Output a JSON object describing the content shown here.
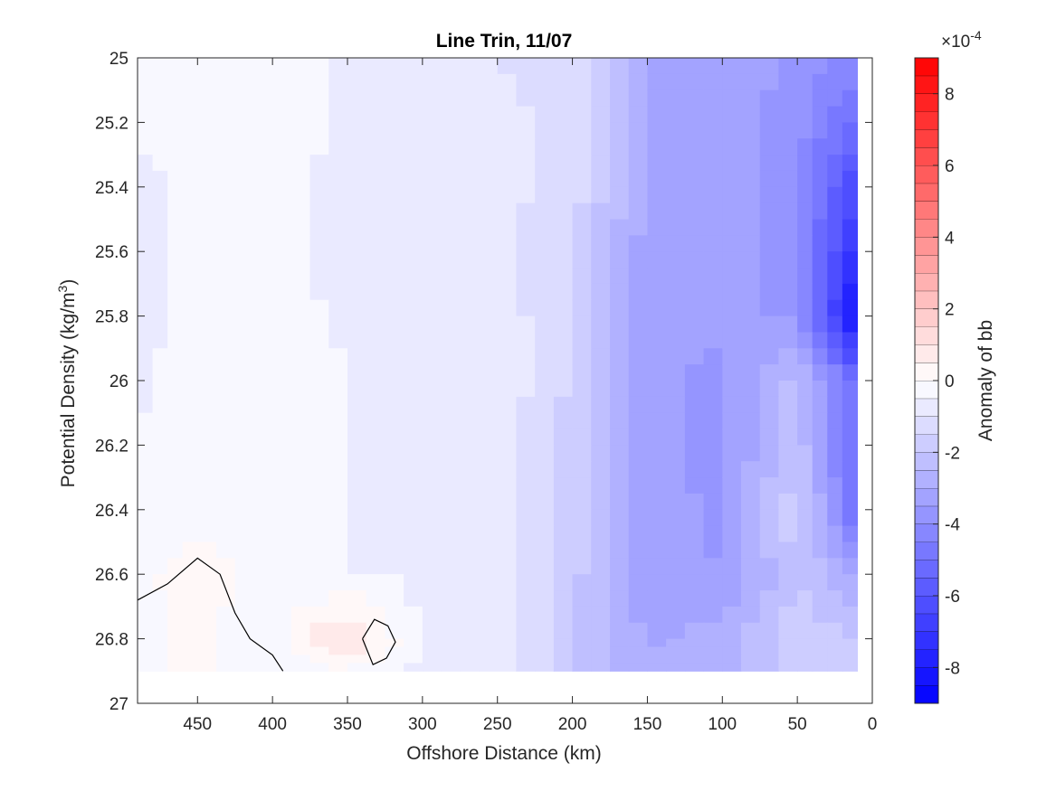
{
  "chart_data": {
    "type": "heatmap",
    "title": "Line Trin, 11/07",
    "xlabel": "Offshore Distance (km)",
    "ylabel_main": "Potential Density (kg/m",
    "ylabel_sup": "3",
    "ylabel_close": ")",
    "xlim": [
      490,
      0
    ],
    "ylim": [
      25,
      27
    ],
    "x_reversed": true,
    "y_reversed": true,
    "xticks": [
      450,
      400,
      350,
      300,
      250,
      200,
      150,
      100,
      50,
      0
    ],
    "xtick_labels": [
      "450",
      "400",
      "350",
      "300",
      "250",
      "200",
      "150",
      "100",
      "50",
      "0"
    ],
    "yticks": [
      25,
      25.2,
      25.4,
      25.6,
      25.8,
      26,
      26.2,
      26.4,
      26.6,
      26.8,
      27
    ],
    "ytick_labels": [
      "25",
      "25.2",
      "25.4",
      "25.6",
      "25.8",
      "26",
      "26.2",
      "26.4",
      "26.6",
      "26.8",
      "27"
    ],
    "data_extent": {
      "x": [
        490,
        10
      ],
      "y": [
        25,
        26.9
      ]
    },
    "grid": false,
    "colorbar": {
      "label": "Anomaly of bb",
      "exponent_prefix": "×10",
      "exponent": "-4",
      "range": [
        -9,
        9
      ],
      "ticks": [
        8,
        6,
        4,
        2,
        0,
        -2,
        -4,
        -6,
        -8
      ],
      "tick_labels": [
        "8",
        "6",
        "4",
        "2",
        "0",
        "-2",
        "-4",
        "-6",
        "-8"
      ],
      "levels": 36,
      "colormap": "blue-white-red",
      "min_color": "#0000ff",
      "mid_color": "#ffffff",
      "max_color": "#ff0000"
    },
    "x_distance_km": [
      490,
      450,
      400,
      350,
      300,
      250,
      200,
      150,
      100,
      50,
      10
    ],
    "y_density": [
      25.0,
      25.2,
      25.4,
      25.6,
      25.8,
      26.0,
      26.2,
      26.4,
      26.6,
      26.8,
      26.9
    ],
    "z_anomaly_e4": [
      [
        -0.3,
        -0.1,
        -0.2,
        -0.6,
        -0.7,
        -1.0,
        -1.3,
        -3.0,
        -3.2,
        -3.6,
        -4.2
      ],
      [
        -0.4,
        -0.1,
        -0.2,
        -0.6,
        -0.7,
        -0.9,
        -1.1,
        -3.0,
        -3.2,
        -3.8,
        -5.2
      ],
      [
        -0.8,
        -0.2,
        -0.3,
        -0.7,
        -0.8,
        -0.8,
        -1.2,
        -3.1,
        -3.2,
        -3.8,
        -6.5
      ],
      [
        -0.7,
        -0.2,
        -0.3,
        -0.7,
        -0.9,
        -0.9,
        -1.5,
        -3.3,
        -3.3,
        -3.8,
        -7.4
      ],
      [
        -0.8,
        -0.2,
        -0.3,
        -0.6,
        -0.8,
        -0.7,
        -1.5,
        -3.3,
        -3.4,
        -3.6,
        -8.6
      ],
      [
        -0.6,
        -0.1,
        -0.2,
        -0.5,
        -0.7,
        -0.6,
        -1.6,
        -3.4,
        -3.6,
        -2.2,
        -5.3
      ],
      [
        -0.5,
        -0.1,
        -0.2,
        -0.5,
        -0.7,
        -0.7,
        -1.7,
        -3.4,
        -3.6,
        -2.1,
        -5.4
      ],
      [
        -0.4,
        -0.1,
        -0.3,
        -0.5,
        -0.7,
        -0.7,
        -1.8,
        -3.3,
        -3.6,
        -1.6,
        -5.2
      ],
      [
        -0.1,
        0.2,
        -0.2,
        -0.5,
        -0.6,
        -0.7,
        -1.8,
        -3.4,
        -3.5,
        -2.0,
        -3.0
      ],
      [
        -0.1,
        0.1,
        -0.3,
        1.2,
        -0.6,
        -0.8,
        -1.9,
        -3.1,
        -2.8,
        -1.7,
        -2.0
      ],
      [
        -0.1,
        0.1,
        -0.3,
        -0.1,
        -0.6,
        -0.8,
        -1.9,
        -2.9,
        -2.7,
        -1.6,
        -1.9
      ]
    ],
    "contours": [
      {
        "level": 0.1,
        "points": [
          [
            490,
            26.68
          ],
          [
            470,
            26.63
          ],
          [
            450,
            26.55
          ],
          [
            435,
            26.6
          ],
          [
            425,
            26.72
          ],
          [
            415,
            26.8
          ],
          [
            400,
            26.85
          ],
          [
            393,
            26.9
          ]
        ]
      },
      {
        "level": 0.1,
        "points": [
          [
            340,
            26.8
          ],
          [
            332,
            26.74
          ],
          [
            323,
            26.76
          ],
          [
            318,
            26.81
          ],
          [
            324,
            26.86
          ],
          [
            333,
            26.88
          ],
          [
            340,
            26.8
          ]
        ]
      }
    ]
  }
}
